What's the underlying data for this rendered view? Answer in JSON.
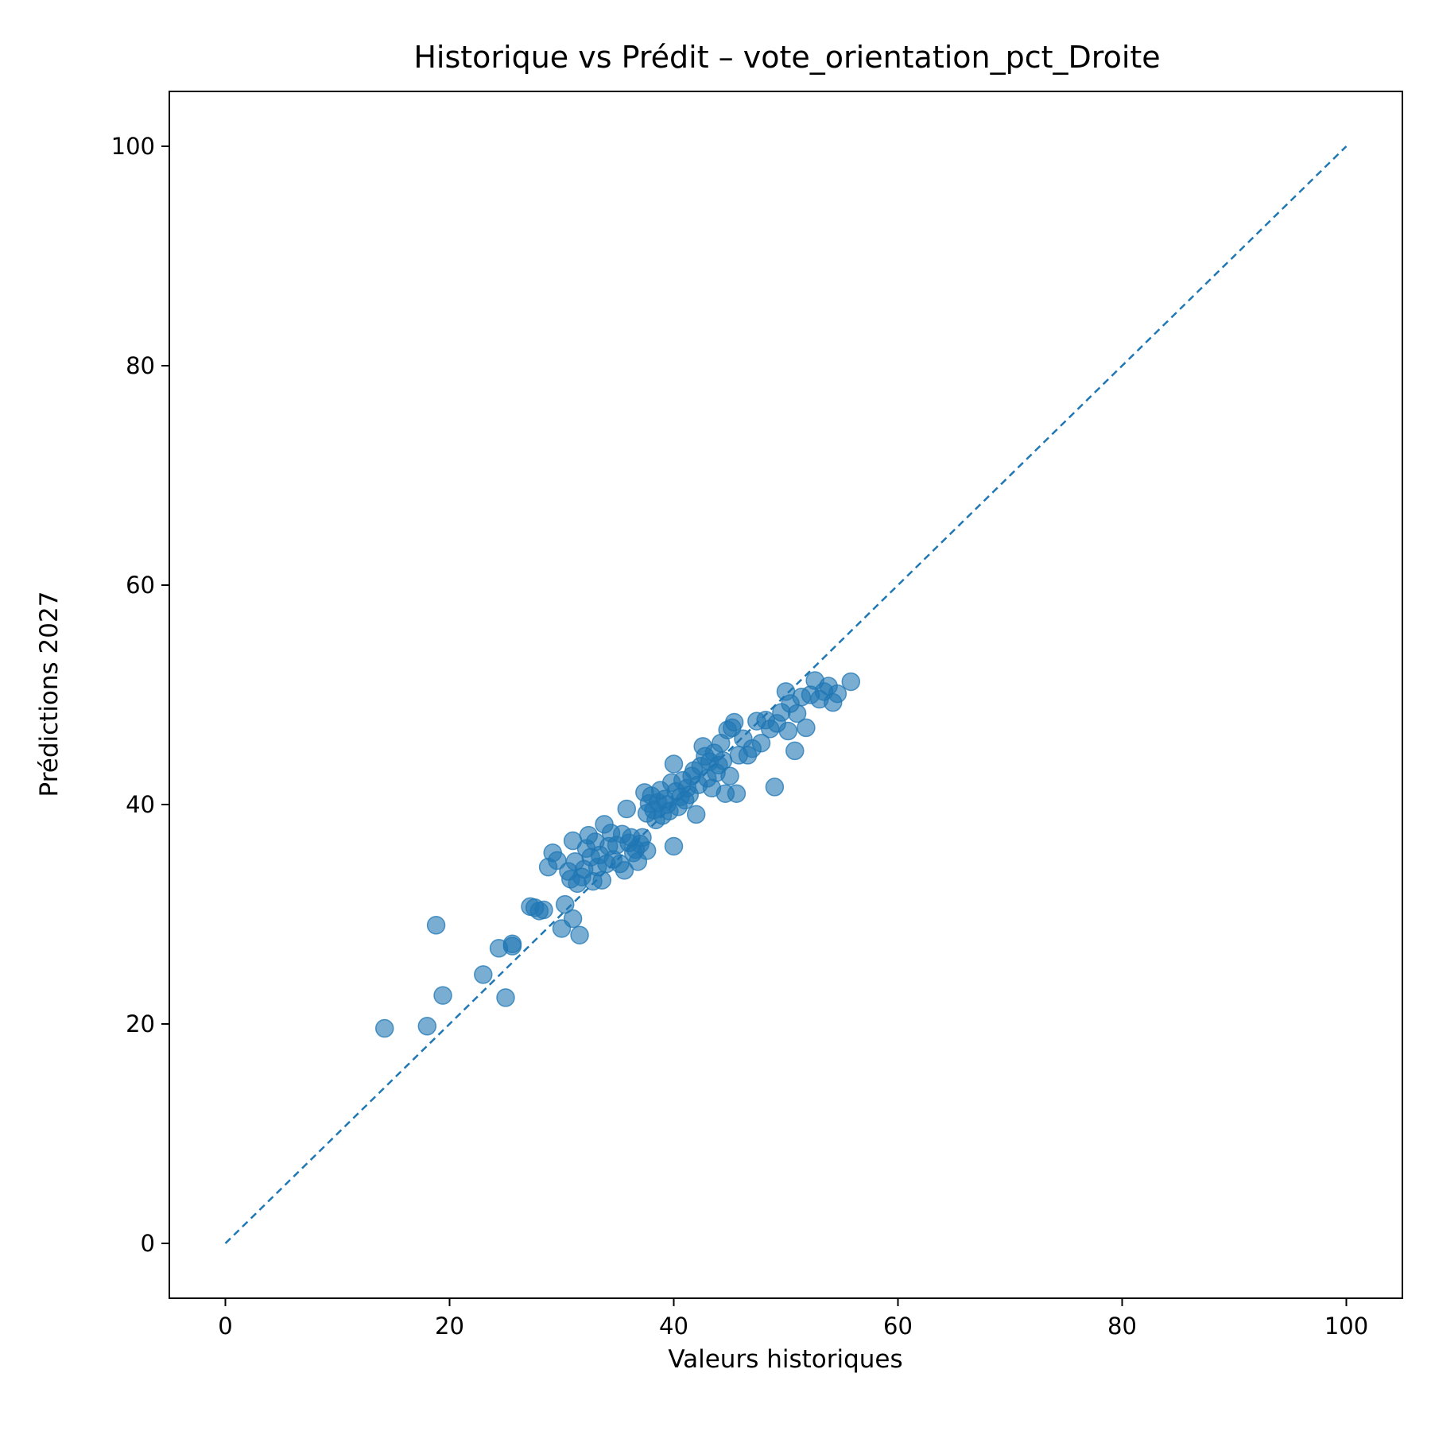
{
  "chart_data": {
    "type": "scatter",
    "title": "Historique vs Prédit – vote_orientation_pct_Droite",
    "xlabel": "Valeurs historiques",
    "ylabel": "Prédictions 2027",
    "xlim": [
      -5,
      105
    ],
    "ylim": [
      -5,
      105
    ],
    "xticks": [
      0,
      20,
      40,
      60,
      80,
      100
    ],
    "yticks": [
      0,
      20,
      40,
      60,
      80,
      100
    ],
    "grid": false,
    "colors": {
      "points": "#1f77b4",
      "reference_line": "#1f77b4"
    },
    "reference_line": {
      "style": "dashed",
      "x": [
        0,
        100
      ],
      "y": [
        0,
        100
      ]
    },
    "series": [
      {
        "points": [
          [
            14.2,
            19.6
          ],
          [
            18.0,
            19.8
          ],
          [
            18.8,
            29.0
          ],
          [
            19.4,
            22.6
          ],
          [
            23.0,
            24.5
          ],
          [
            24.4,
            26.9
          ],
          [
            25.0,
            22.4
          ],
          [
            25.6,
            27.1
          ],
          [
            25.6,
            27.3
          ],
          [
            27.2,
            30.7
          ],
          [
            27.6,
            30.6
          ],
          [
            28.0,
            30.3
          ],
          [
            28.4,
            30.4
          ],
          [
            28.8,
            34.3
          ],
          [
            29.2,
            35.6
          ],
          [
            29.6,
            34.9
          ],
          [
            30.0,
            28.7
          ],
          [
            30.3,
            30.9
          ],
          [
            30.6,
            33.9
          ],
          [
            30.8,
            33.2
          ],
          [
            31.0,
            36.7
          ],
          [
            31.0,
            29.6
          ],
          [
            31.2,
            34.8
          ],
          [
            31.4,
            32.8
          ],
          [
            31.6,
            28.1
          ],
          [
            31.8,
            33.4
          ],
          [
            32.0,
            34.1
          ],
          [
            32.2,
            36.0
          ],
          [
            32.4,
            37.2
          ],
          [
            32.6,
            35.2
          ],
          [
            32.8,
            33.0
          ],
          [
            33.0,
            36.6
          ],
          [
            33.2,
            34.3
          ],
          [
            33.4,
            35.4
          ],
          [
            33.6,
            33.1
          ],
          [
            33.8,
            38.2
          ],
          [
            34.0,
            34.6
          ],
          [
            34.2,
            36.2
          ],
          [
            34.4,
            37.4
          ],
          [
            34.6,
            35.0
          ],
          [
            34.9,
            36.3
          ],
          [
            35.2,
            34.6
          ],
          [
            35.4,
            37.3
          ],
          [
            35.6,
            34.0
          ],
          [
            35.8,
            39.6
          ],
          [
            36.0,
            36.5
          ],
          [
            36.2,
            37.0
          ],
          [
            36.4,
            35.6
          ],
          [
            36.6,
            35.9
          ],
          [
            36.8,
            34.8
          ],
          [
            37.0,
            36.4
          ],
          [
            37.2,
            37.0
          ],
          [
            37.4,
            41.1
          ],
          [
            37.6,
            35.8
          ],
          [
            37.6,
            39.2
          ],
          [
            37.8,
            40.1
          ],
          [
            38.0,
            40.8
          ],
          [
            38.2,
            39.5
          ],
          [
            38.4,
            38.6
          ],
          [
            38.6,
            40.2
          ],
          [
            38.8,
            41.3
          ],
          [
            39.0,
            39.0
          ],
          [
            39.2,
            40.5
          ],
          [
            39.4,
            40.0
          ],
          [
            39.6,
            39.4
          ],
          [
            39.8,
            42.0
          ],
          [
            40.0,
            36.2
          ],
          [
            40.0,
            43.7
          ],
          [
            40.2,
            41.2
          ],
          [
            40.4,
            39.8
          ],
          [
            40.6,
            40.7
          ],
          [
            40.8,
            42.2
          ],
          [
            41.0,
            40.4
          ],
          [
            41.2,
            41.5
          ],
          [
            41.4,
            40.9
          ],
          [
            41.6,
            42.6
          ],
          [
            41.8,
            43.1
          ],
          [
            42.0,
            39.1
          ],
          [
            42.2,
            41.8
          ],
          [
            42.4,
            43.5
          ],
          [
            42.6,
            45.3
          ],
          [
            42.8,
            44.4
          ],
          [
            43.0,
            42.4
          ],
          [
            43.2,
            43.9
          ],
          [
            43.4,
            41.5
          ],
          [
            43.6,
            44.7
          ],
          [
            43.8,
            42.9
          ],
          [
            44.0,
            43.6
          ],
          [
            44.2,
            45.6
          ],
          [
            44.4,
            44.0
          ],
          [
            44.6,
            41.0
          ],
          [
            44.8,
            46.8
          ],
          [
            45.0,
            42.6
          ],
          [
            45.2,
            47.0
          ],
          [
            45.4,
            47.5
          ],
          [
            45.6,
            41.0
          ],
          [
            45.8,
            44.5
          ],
          [
            46.2,
            46.0
          ],
          [
            46.6,
            44.5
          ],
          [
            47.0,
            45.1
          ],
          [
            47.4,
            47.6
          ],
          [
            47.8,
            45.6
          ],
          [
            48.2,
            47.7
          ],
          [
            48.6,
            46.9
          ],
          [
            49.0,
            41.6
          ],
          [
            49.2,
            47.4
          ],
          [
            49.6,
            48.4
          ],
          [
            50.0,
            50.3
          ],
          [
            50.2,
            46.7
          ],
          [
            50.4,
            49.2
          ],
          [
            50.8,
            44.9
          ],
          [
            51.0,
            48.3
          ],
          [
            51.4,
            49.8
          ],
          [
            51.8,
            47.0
          ],
          [
            52.2,
            50.0
          ],
          [
            52.6,
            51.3
          ],
          [
            53.0,
            49.6
          ],
          [
            53.4,
            50.3
          ],
          [
            53.8,
            50.8
          ],
          [
            54.2,
            49.3
          ],
          [
            54.6,
            50.1
          ],
          [
            55.8,
            51.2
          ]
        ]
      }
    ]
  }
}
